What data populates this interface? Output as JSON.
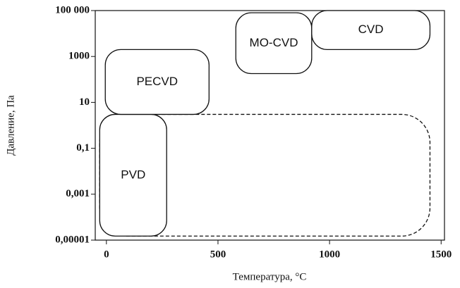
{
  "chart_data": {
    "type": "regions",
    "xlabel": "Температура, °C",
    "ylabel": "Давление, Па",
    "xlim": [
      -50,
      1515
    ],
    "ylim": [
      1e-05,
      100000
    ],
    "ylog": true,
    "xticks": [
      0,
      500,
      1000,
      1500
    ],
    "yticks": [
      {
        "value": 100000,
        "label": "100 000"
      },
      1000,
      10,
      {
        "value": 0.1,
        "label": "0,1"
      },
      {
        "value": 0.001,
        "label": "0,001"
      },
      {
        "value": 1e-05,
        "label": "0,00001"
      }
    ],
    "regions": [
      {
        "name": "PVD",
        "x": [
          -30,
          1450
        ],
        "y": [
          1.5e-05,
          3
        ],
        "dashed": true,
        "label": false
      },
      {
        "name": "PVD",
        "x": [
          -30,
          270
        ],
        "y": [
          1.5e-05,
          3
        ],
        "dashed": false,
        "label": true
      },
      {
        "name": "PECVD",
        "x": [
          -5,
          460
        ],
        "y": [
          3,
          2000
        ],
        "dashed": false,
        "label": true
      },
      {
        "name": "MO-CVD",
        "x": [
          580,
          920
        ],
        "y": [
          180,
          80000
        ],
        "dashed": false,
        "label": true
      },
      {
        "name": "CVD",
        "x": [
          920,
          1450
        ],
        "y": [
          2000,
          100000
        ],
        "dashed": false,
        "label": true
      }
    ]
  }
}
